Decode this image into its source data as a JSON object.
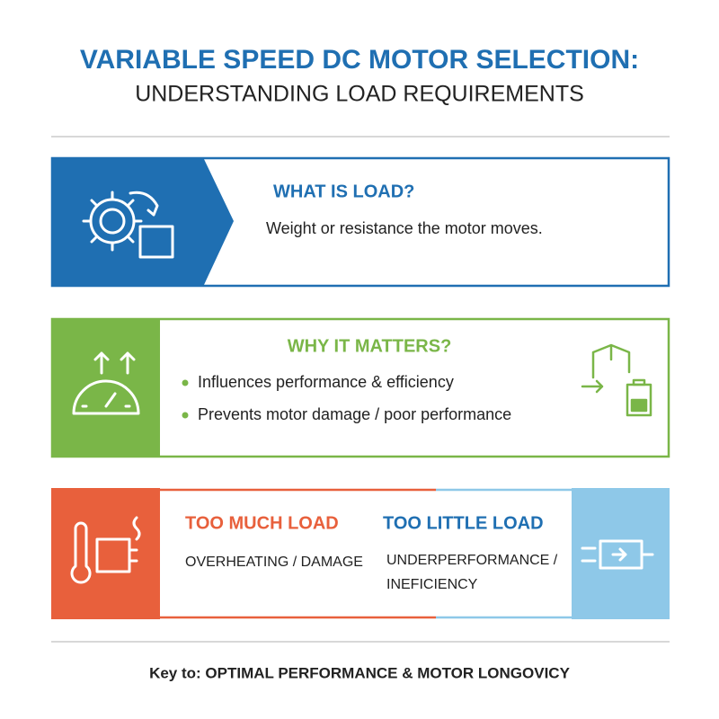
{
  "header": {
    "title": "VARIABLE SPEED DC MOTOR SELECTION:",
    "subtitle": "UNDERSTANDING LOAD REQUIREMENTS"
  },
  "sections": [
    {
      "heading": "WHAT IS LOAD?",
      "text": "Weight or resistance the motor moves."
    },
    {
      "heading": "WHY IT MATTERS?",
      "bullets": [
        "Influences performance & efficiency",
        "Prevents motor damage / poor performance"
      ]
    },
    {
      "left": {
        "heading": "TOO MUCH LOAD",
        "text": "OVERHEATING / DAMAGE"
      },
      "right": {
        "heading": "TOO LITTLE LOAD",
        "lines": [
          "UNDERPERFORMANCE /",
          "INEFICIENCY"
        ]
      }
    }
  ],
  "footer": "Key to: OPTIMAL PERFORMANCE & MOTOR LONGOVICY"
}
